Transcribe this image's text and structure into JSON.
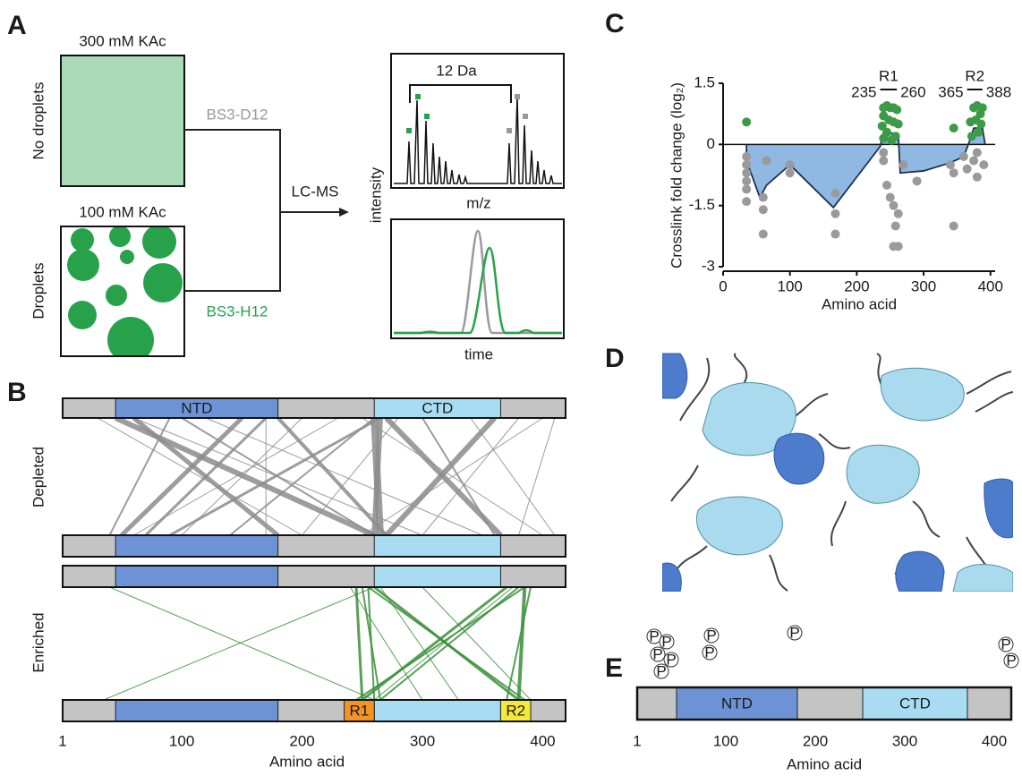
{
  "panel_a": {
    "label": "A",
    "conditions": [
      {
        "salt": "300 mM KAc",
        "state": "No droplets",
        "reagent": "BS3-D12"
      },
      {
        "salt": "100 mM KAc",
        "state": "Droplets",
        "reagent": "BS3-H12"
      }
    ],
    "method": "LC-MS",
    "spectrum": {
      "annotation": "12 Da",
      "x_label": "m/z",
      "y_label": "intensity"
    },
    "chromatogram": {
      "x_label": "time"
    }
  },
  "panel_b": {
    "label": "B",
    "xlim": [
      1,
      419
    ],
    "xticks": [
      1,
      100,
      200,
      300,
      400
    ],
    "x_label": "Amino acid",
    "backbone_color": "#c4c4c4",
    "domains": [
      {
        "name": "NTD",
        "start": 45,
        "end": 180,
        "color": "#6d93d6"
      },
      {
        "name": "CTD",
        "start": 260,
        "end": 365,
        "color": "#a8dcf2"
      }
    ],
    "regions": [
      {
        "name": "R1",
        "start": 235,
        "end": 260,
        "color": "#f39325"
      },
      {
        "name": "R2",
        "start": 365,
        "end": 390,
        "color": "#f6e83a"
      }
    ],
    "groups": [
      {
        "name": "Depleted",
        "color": "#8c8c8c",
        "links": [
          [
            45,
            260,
            6
          ],
          [
            60,
            180,
            5
          ],
          [
            100,
            260,
            2
          ],
          [
            150,
            50,
            5
          ],
          [
            170,
            70,
            3
          ],
          [
            180,
            270,
            4
          ],
          [
            60,
            300,
            1
          ],
          [
            120,
            350,
            1
          ],
          [
            200,
            100,
            1
          ],
          [
            260,
            265,
            8
          ],
          [
            265,
            260,
            6
          ],
          [
            270,
            365,
            6
          ],
          [
            360,
            270,
            6
          ],
          [
            300,
            360,
            2
          ],
          [
            265,
            90,
            3
          ],
          [
            260,
            140,
            2
          ],
          [
            250,
            400,
            1
          ],
          [
            380,
            300,
            1
          ],
          [
            400,
            250,
            1
          ],
          [
            410,
            380,
            1
          ],
          [
            30,
            200,
            1
          ],
          [
            90,
            40,
            2
          ],
          [
            170,
            170,
            1
          ],
          [
            340,
            410,
            1
          ],
          [
            230,
            60,
            1
          ],
          [
            280,
            200,
            1
          ]
        ]
      },
      {
        "name": "Enriched",
        "color": "#3a8f3a",
        "links": [
          [
            40,
            260,
            1
          ],
          [
            260,
            35,
            1
          ],
          [
            245,
            250,
            3
          ],
          [
            250,
            265,
            2
          ],
          [
            255,
            385,
            2
          ],
          [
            260,
            380,
            3
          ],
          [
            370,
            250,
            3
          ],
          [
            380,
            265,
            2
          ],
          [
            385,
            380,
            4
          ],
          [
            390,
            370,
            2
          ],
          [
            240,
            300,
            1
          ],
          [
            300,
            390,
            1
          ],
          [
            265,
            330,
            1
          ],
          [
            375,
            260,
            1
          ],
          [
            385,
            245,
            2
          ],
          [
            255,
            260,
            2
          ]
        ]
      }
    ]
  },
  "panel_c": {
    "label": "C",
    "chart_data": {
      "type": "scatter",
      "y_label": "Crosslink fold change (log₂)",
      "x_label": "Amino acid",
      "xlim": [
        0,
        407
      ],
      "ylim": [
        -3,
        1.5
      ],
      "xticks": [
        0,
        100,
        200,
        300,
        400
      ],
      "yticks": [
        1.5,
        0,
        -1.5,
        -3
      ],
      "regions": [
        {
          "name": "R1",
          "start": 235,
          "end": 260
        },
        {
          "name": "R2",
          "start": 365,
          "end": 388
        }
      ],
      "series": [
        {
          "color": "#3d9a46",
          "x": [
            35,
            240,
            245,
            250,
            255,
            260,
            240,
            248,
            255,
            238,
            262,
            245,
            258,
            240,
            252,
            345,
            370,
            375,
            380,
            385,
            388,
            378,
            382,
            386,
            372
          ],
          "values": [
            0.55,
            0.9,
            0.95,
            0.9,
            0.9,
            0.85,
            0.7,
            0.6,
            0.55,
            0.45,
            0.5,
            0.3,
            0.2,
            0.15,
            0.1,
            0.4,
            0.55,
            0.9,
            0.95,
            0.75,
            0.9,
            0.6,
            0.3,
            0.5,
            0.2
          ]
        },
        {
          "color": "#9a9a9a",
          "x": [
            35,
            35,
            35,
            35,
            35,
            35,
            60,
            60,
            60,
            65,
            100,
            100,
            168,
            168,
            168,
            240,
            240,
            245,
            250,
            255,
            258,
            255,
            262,
            262,
            270,
            290,
            340,
            345,
            345,
            360,
            365,
            375,
            380,
            390,
            380
          ],
          "values": [
            -0.3,
            -0.5,
            -0.7,
            -0.9,
            -1.1,
            -1.4,
            -1.3,
            -1.6,
            -2.2,
            -0.4,
            -0.5,
            -0.7,
            -1.2,
            -1.7,
            -2.2,
            -0.2,
            -0.4,
            -1.0,
            -1.3,
            -1.5,
            -2.0,
            -2.5,
            -2.5,
            -1.7,
            -0.5,
            -0.9,
            -0.5,
            -2.0,
            -0.7,
            -0.3,
            -0.6,
            -0.4,
            -0.2,
            -0.5,
            -0.8
          ]
        }
      ],
      "profile": {
        "color": "#1f2f4f",
        "fill": "#8fb8e2",
        "x": [
          35,
          35,
          55,
          65,
          100,
          165,
          235,
          240,
          262,
          265,
          300,
          340,
          360,
          368,
          375,
          388,
          392
        ],
        "values": [
          0,
          -0.4,
          -1.3,
          -1.0,
          -0.5,
          -1.55,
          -0.05,
          0.3,
          0.25,
          -0.7,
          -0.65,
          -0.45,
          -0.3,
          0.05,
          0.4,
          0.4,
          0
        ]
      }
    }
  },
  "panel_d": {
    "label": "D"
  },
  "panel_e": {
    "label": "E",
    "xlim": [
      1,
      419
    ],
    "xticks": [
      1,
      100,
      200,
      300,
      400
    ],
    "x_label": "Amino acid",
    "backbone_color": "#c4c4c4",
    "domains": [
      {
        "name": "NTD",
        "start": 45,
        "end": 180,
        "color": "#6d93d6"
      },
      {
        "name": "CTD",
        "start": 253,
        "end": 370,
        "color": "#a8dcf2"
      }
    ],
    "phospho_label": "P",
    "phospho_sites": [
      20,
      34,
      24,
      39,
      28,
      84,
      82,
      177,
      413,
      419
    ]
  }
}
